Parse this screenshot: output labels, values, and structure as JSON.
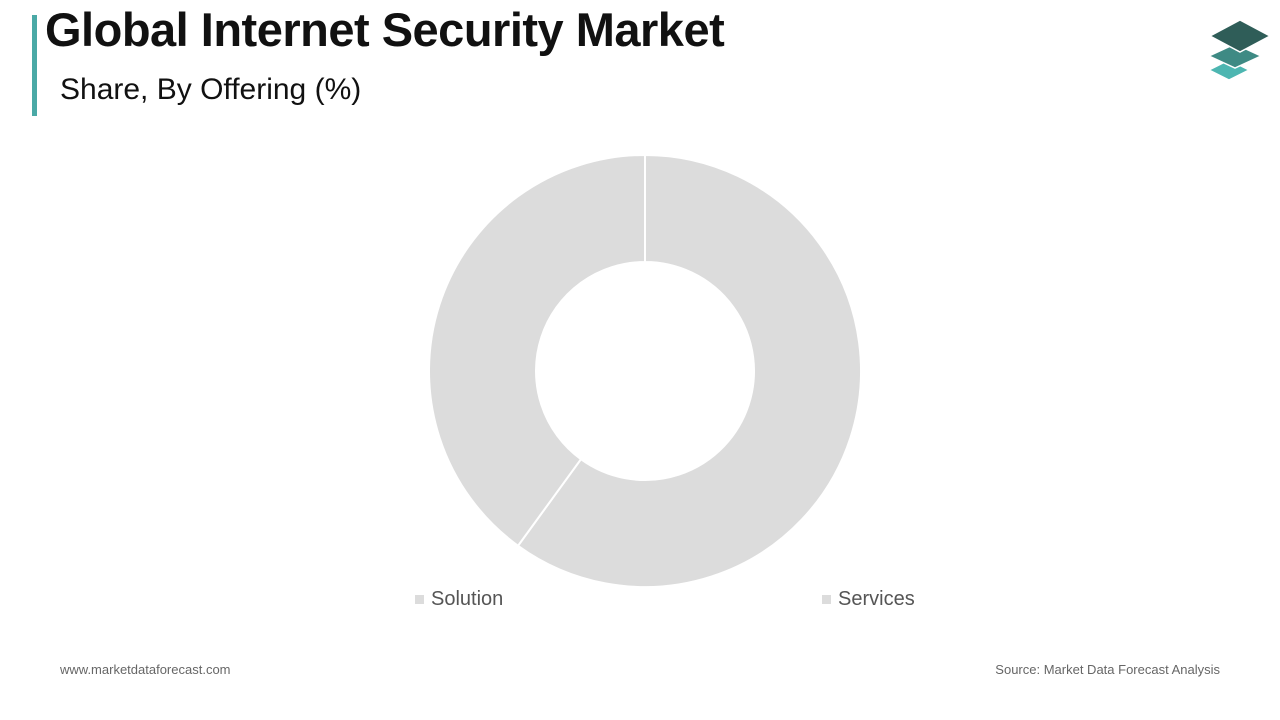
{
  "header": {
    "title": "Global Internet Security Market",
    "subtitle": "Share, By Offering (%)"
  },
  "footer": {
    "website": "www.marketdataforecast.com",
    "source": "Source: Market Data Forecast Analysis"
  },
  "colors": {
    "accent": "#4aa9a6",
    "slice": "#dcdcdc",
    "slice_border": "#ffffff",
    "logo_top": "#2f5d58",
    "logo_mid": "#3e8a84",
    "logo_bottom": "#4db6b1"
  },
  "logo": {
    "icon": "stacked-layers-logo"
  },
  "chart_data": {
    "type": "pie",
    "style": "donut",
    "series": [
      {
        "name": "Services",
        "value": 60
      },
      {
        "name": "Solution",
        "value": 40
      }
    ],
    "legend": [
      "Solution",
      "Services"
    ]
  }
}
